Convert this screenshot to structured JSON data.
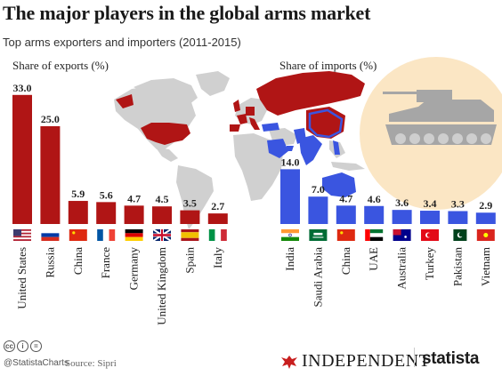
{
  "header": {
    "title": "The major players in the global arms market",
    "subtitle": "Top arms exporters and importers (2011-2015)"
  },
  "colors": {
    "exports": "#b01515",
    "imports": "#3a55e0",
    "map_gray": "#d0d0d0",
    "sun": "#fbe6c4",
    "tank": "#a6a6a6"
  },
  "chart_data": [
    {
      "type": "bar",
      "ylabel": "Share of exports (%)",
      "categories": [
        "United States",
        "Russia",
        "China",
        "France",
        "Germany",
        "United Kingdom",
        "Spain",
        "Italy"
      ],
      "values": [
        33.0,
        25.0,
        5.9,
        5.6,
        4.7,
        4.5,
        3.5,
        2.7
      ],
      "value_labels": [
        "33.0",
        "25.0",
        "5.9",
        "5.6",
        "4.7",
        "4.5",
        "3.5",
        "2.7"
      ],
      "flags": [
        "us",
        "ru",
        "cn",
        "fr",
        "de",
        "gb",
        "es",
        "it"
      ]
    },
    {
      "type": "bar",
      "ylabel": "Share of imports (%)",
      "categories": [
        "India",
        "Saudi Arabia",
        "China",
        "UAE",
        "Australia",
        "Turkey",
        "Pakistan",
        "Vietnam"
      ],
      "values": [
        14.0,
        7.0,
        4.7,
        4.6,
        3.6,
        3.4,
        3.3,
        2.9
      ],
      "value_labels": [
        "14.0",
        "7.0",
        "4.7",
        "4.6",
        "3.6",
        "3.4",
        "3.3",
        "2.9"
      ],
      "flags": [
        "in",
        "sa",
        "cn",
        "ae",
        "au",
        "tr",
        "pk",
        "vn"
      ]
    }
  ],
  "footer": {
    "cc_icons": [
      "cc",
      "i",
      "="
    ],
    "handle": "@StatistaCharts",
    "source": "Source: Sipri",
    "independent": "INDEPENDENT",
    "statista": "statista"
  }
}
